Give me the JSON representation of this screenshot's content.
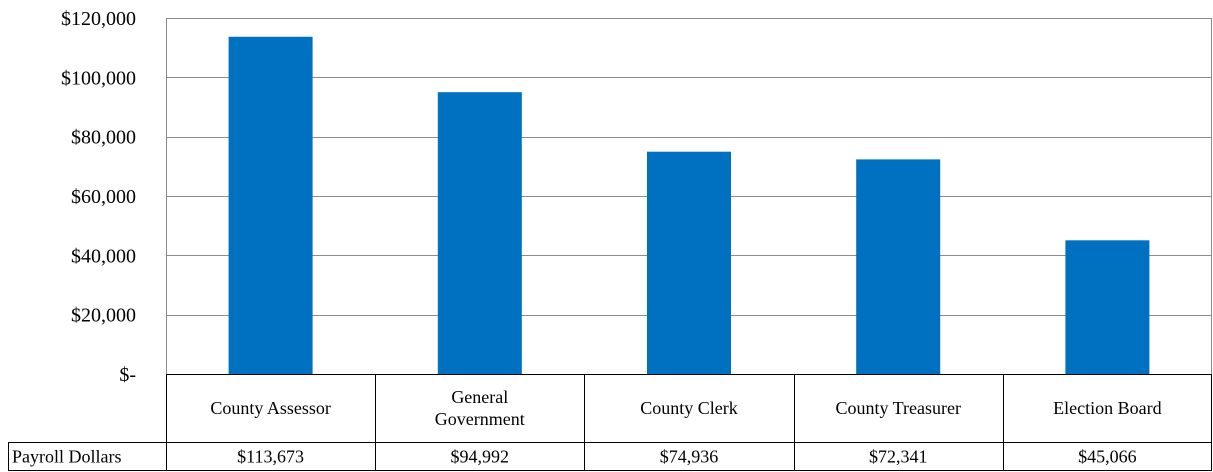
{
  "chart_data": {
    "type": "bar",
    "title": "",
    "xlabel": "",
    "ylabel": "",
    "categories": [
      "County Assessor",
      "General Government",
      "County Clerk",
      "County Treasurer",
      "Election Board"
    ],
    "category_lines": [
      [
        "County Assessor"
      ],
      [
        "General",
        "Government"
      ],
      [
        "County Clerk"
      ],
      [
        "County Treasurer"
      ],
      [
        "Election Board"
      ]
    ],
    "series": [
      {
        "name": "Payroll Dollars",
        "values": [
          113673,
          94992,
          74936,
          72341,
          45066
        ],
        "value_labels": [
          "$113,673",
          "$94,992",
          "$74,936",
          "$72,341",
          "$45,066"
        ],
        "color": "#0070C0"
      }
    ],
    "ylim": [
      0,
      120000
    ],
    "yticks": [
      0,
      20000,
      40000,
      60000,
      80000,
      100000,
      120000
    ],
    "ytick_labels": [
      "$-",
      "$20,000",
      "$40,000",
      "$60,000",
      "$80,000",
      "$100,000",
      "$120,000"
    ],
    "grid": true,
    "data_table": true
  }
}
